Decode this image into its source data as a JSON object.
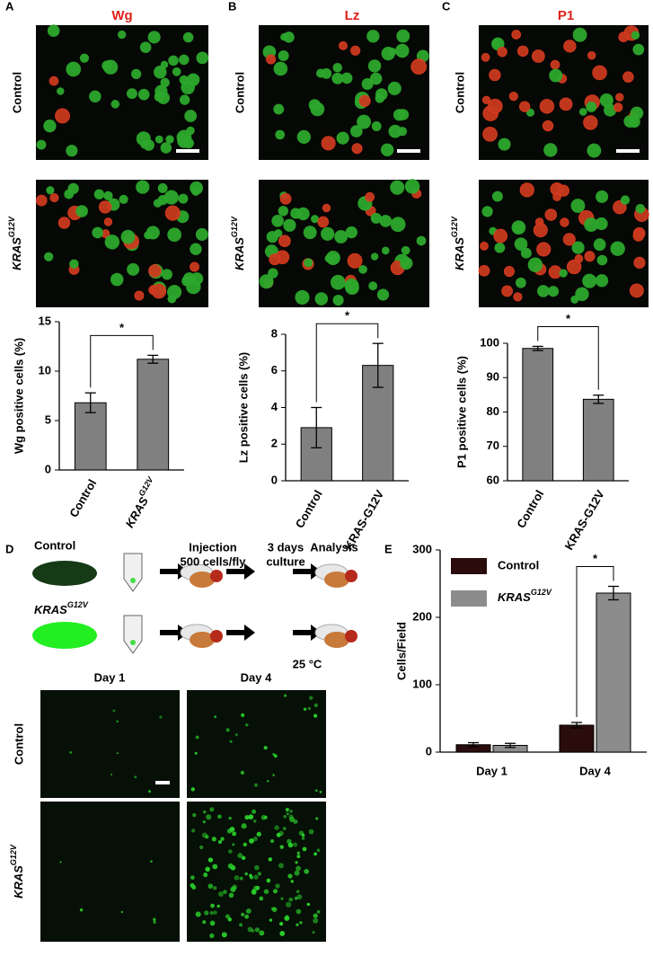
{
  "figure": {
    "letters": [
      "A",
      "B",
      "C",
      "D",
      "E"
    ],
    "titles": [
      "Wg",
      "Lz",
      "P1"
    ],
    "row_labels": [
      "Control",
      "KRAS"
    ],
    "superscript": "G12V"
  },
  "schematic": {
    "injection": [
      "Injection",
      "500 cells/fly"
    ],
    "culture": [
      "3 days",
      "culture"
    ],
    "analysis": "Analysis",
    "temperature": "25 °C",
    "days": [
      "Day 1",
      "Day 4"
    ]
  },
  "chart_data": [
    {
      "type": "bar",
      "ylabel": "Wg positive cells (%)",
      "categories": [
        "Control",
        "KRAS"
      ],
      "category_superscripts": [
        null,
        "G12V"
      ],
      "values": [
        6.8,
        11.2
      ],
      "errors": [
        1.0,
        0.4
      ],
      "color": "#808080",
      "ylim": [
        0,
        15
      ],
      "yticks": [
        0,
        5,
        10,
        15
      ],
      "annotation": "*"
    },
    {
      "type": "bar",
      "ylabel": "Lz positive cells (%)",
      "categories": [
        "Control",
        "KRAS-G12V"
      ],
      "values": [
        2.9,
        6.3
      ],
      "errors": [
        1.1,
        1.2
      ],
      "color": "#808080",
      "ylim": [
        0,
        8
      ],
      "yticks": [
        0,
        2,
        4,
        6,
        8
      ],
      "annotation": "*"
    },
    {
      "type": "bar",
      "ylabel": "P1 positive cells (%)",
      "categories": [
        "Control",
        "KRAS-G12V"
      ],
      "values": [
        98.5,
        83.7
      ],
      "errors": [
        0.6,
        1.2
      ],
      "color": "#808080",
      "ylim": [
        60,
        100
      ],
      "yticks": [
        60,
        70,
        80,
        90,
        100
      ],
      "annotation": "*"
    },
    {
      "type": "grouped-bar",
      "ylabel": "Cells/Field",
      "categories": [
        "Day 1",
        "Day 4"
      ],
      "series": [
        {
          "name": "Control",
          "color": "#2b0c0c",
          "values": [
            11,
            40
          ],
          "errors": [
            3,
            4
          ]
        },
        {
          "name": "KRAS",
          "name_superscript": "G12V",
          "color": "#8c8c8c",
          "values": [
            10,
            236
          ],
          "errors": [
            3,
            10
          ]
        }
      ],
      "ylim": [
        0,
        300
      ],
      "yticks": [
        0,
        100,
        200,
        300
      ],
      "legend": "upper left",
      "annotation": "*"
    }
  ]
}
